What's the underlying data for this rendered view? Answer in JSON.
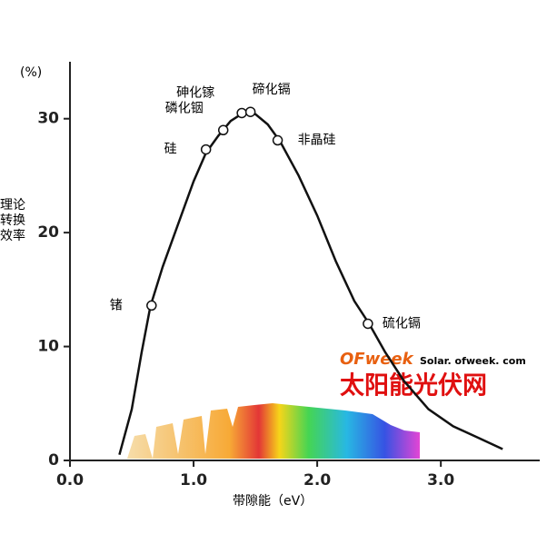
{
  "chart_data": {
    "type": "line",
    "y_unit": "(%)",
    "ylabel": "理论\n转换\n效率",
    "xlabel": "带隙能（eV）",
    "xlim": [
      0,
      3.8
    ],
    "ylim": [
      0,
      35
    ],
    "xticks": [
      {
        "value": 0,
        "label": "0.0"
      },
      {
        "value": 1,
        "label": "1.0"
      },
      {
        "value": 2,
        "label": "2.0"
      },
      {
        "value": 3,
        "label": "3.0"
      }
    ],
    "yticks": [
      0,
      10,
      20,
      30
    ],
    "series": [
      {
        "color": "#111111",
        "x": [
          0.4,
          0.5,
          0.58,
          0.65,
          0.75,
          0.9,
          1.0,
          1.1,
          1.2,
          1.3,
          1.4,
          1.5,
          1.6,
          1.7,
          1.85,
          2.0,
          2.15,
          2.3,
          2.42,
          2.55,
          2.7,
          2.9,
          3.1,
          3.3,
          3.5
        ],
        "values": [
          0.5,
          4.5,
          9.5,
          13.5,
          17,
          21.5,
          24.5,
          27,
          28.5,
          29.8,
          30.5,
          30.4,
          29.5,
          28,
          25,
          21.5,
          17.5,
          14,
          12,
          9.5,
          7,
          4.5,
          3,
          2,
          1
        ]
      }
    ],
    "points": [
      {
        "label": "锗",
        "x": 0.66,
        "y": 13.6
      },
      {
        "label": "硅",
        "x": 1.1,
        "y": 27.3
      },
      {
        "label": "磷化铟",
        "x": 1.24,
        "y": 29
      },
      {
        "label": "砷化镓",
        "x": 1.39,
        "y": 30.5
      },
      {
        "label": "碲化镉",
        "x": 1.46,
        "y": 30.6
      },
      {
        "label": "非晶硅",
        "x": 1.68,
        "y": 28.1
      },
      {
        "label": "硫化镉",
        "x": 2.41,
        "y": 12
      }
    ],
    "watermark": {
      "logo": "OFweek",
      "site": "Solar. ofweek. com",
      "name": "太阳能光伏网"
    }
  }
}
